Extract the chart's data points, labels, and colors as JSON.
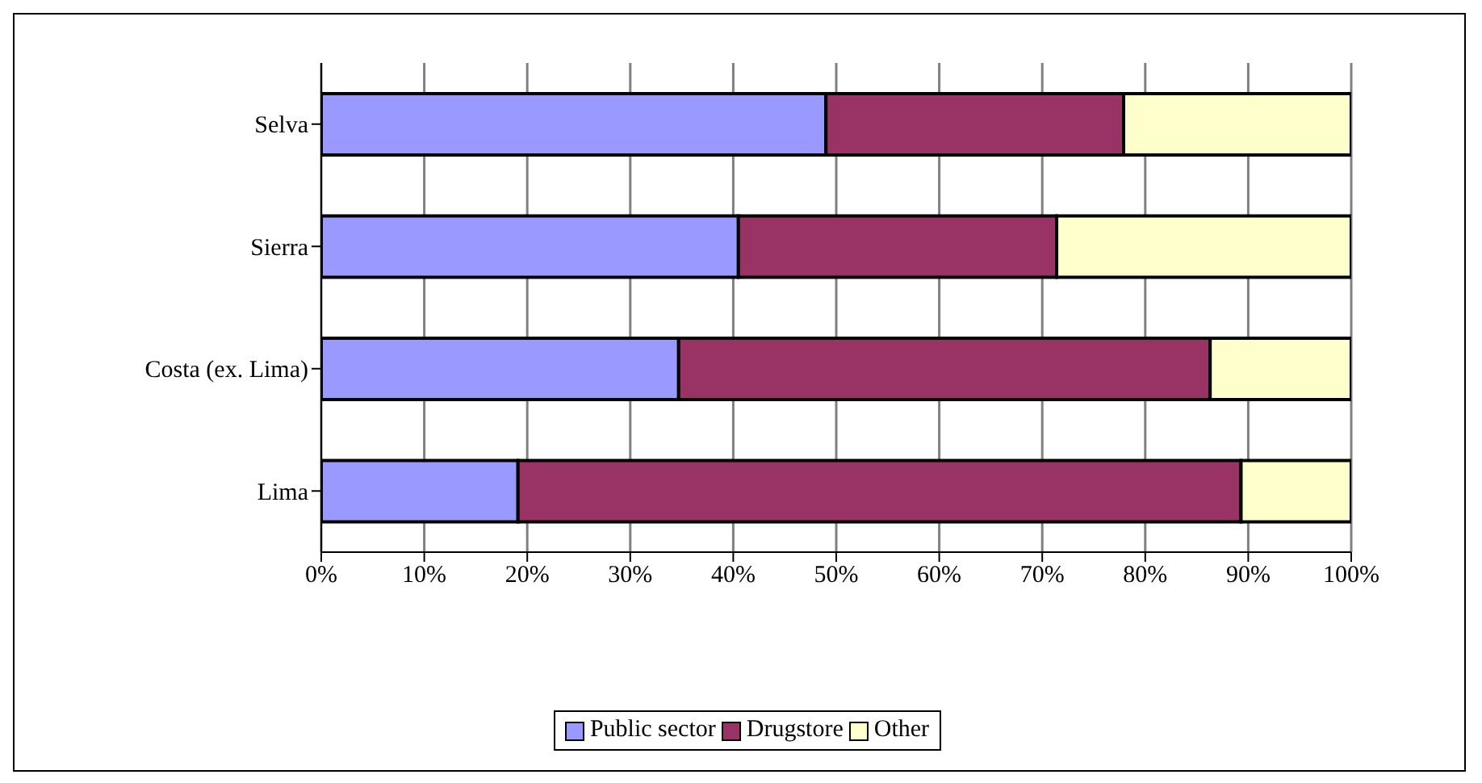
{
  "chart_data": {
    "type": "bar",
    "orientation": "horizontal",
    "stacked": true,
    "categories": [
      "Selva",
      "Sierra",
      "Costa (ex. Lima)",
      "Lima"
    ],
    "series": [
      {
        "name": "Public sector",
        "color": "#9999ff",
        "values": [
          49,
          40.5,
          34.7,
          19.1
        ]
      },
      {
        "name": "Drugstore",
        "color": "#993366",
        "values": [
          28.9,
          30.9,
          51.6,
          70.2
        ]
      },
      {
        "name": "Other",
        "color": "#ffffcc",
        "values": [
          22.1,
          28.6,
          13.7,
          10.7
        ]
      }
    ],
    "xlim": [
      0,
      100
    ],
    "xticks": [
      {
        "value": 0,
        "label": "0%"
      },
      {
        "value": 10,
        "label": "10%"
      },
      {
        "value": 20,
        "label": "20%"
      },
      {
        "value": 30,
        "label": "30%"
      },
      {
        "value": 40,
        "label": "40%"
      },
      {
        "value": 50,
        "label": "50%"
      },
      {
        "value": 60,
        "label": "60%"
      },
      {
        "value": 70,
        "label": "70%"
      },
      {
        "value": 80,
        "label": "80%"
      },
      {
        "value": 90,
        "label": "90%"
      },
      {
        "value": 100,
        "label": "100%"
      }
    ],
    "grid": "x",
    "legend": "bottom"
  }
}
